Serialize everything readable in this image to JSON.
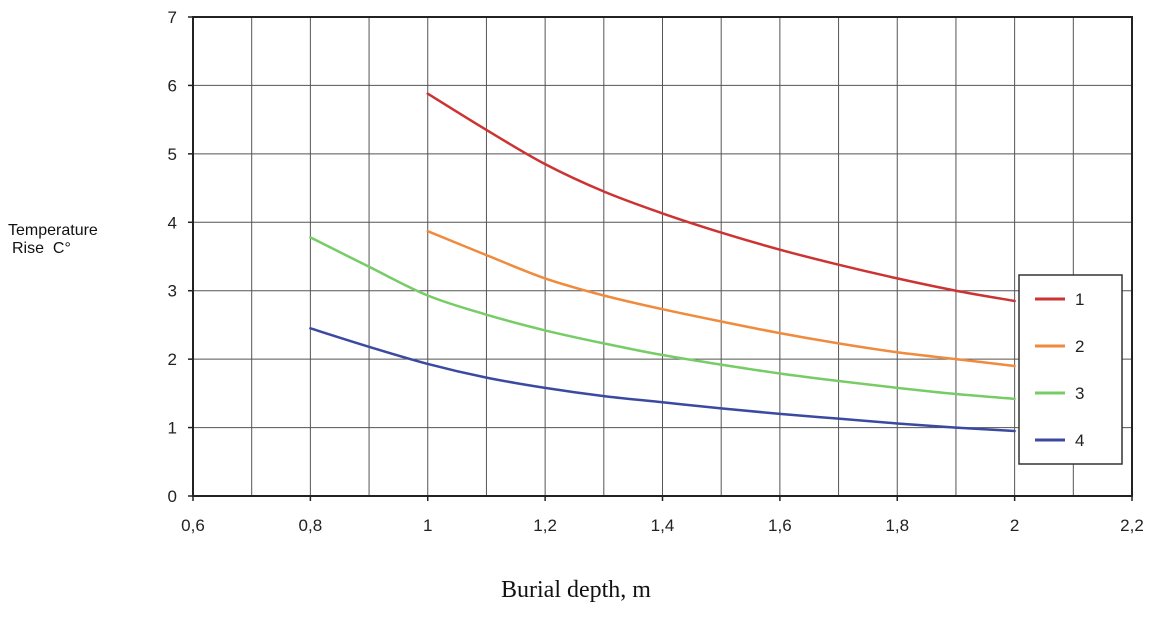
{
  "chart_data": {
    "type": "line",
    "xlabel": "Burial depth, m",
    "ylabel_line1": "Temperature",
    "ylabel_line2": "Rise  C°",
    "xlim": [
      0.6,
      2.2
    ],
    "ylim": [
      0,
      7
    ],
    "x_ticks": [
      0.6,
      0.8,
      1.0,
      1.2,
      1.4,
      1.6,
      1.8,
      2.0,
      2.2
    ],
    "x_tick_labels": [
      "0,6",
      "0,8",
      "1",
      "1,2",
      "1,4",
      "1,6",
      "1,8",
      "2",
      "2,2"
    ],
    "y_ticks": [
      0,
      1,
      2,
      3,
      4,
      5,
      6,
      7
    ],
    "y_tick_labels": [
      "0",
      "1",
      "2",
      "3",
      "4",
      "5",
      "6",
      "7"
    ],
    "grid": true,
    "grid_x_step": 0.1,
    "legend_position": "right",
    "series": [
      {
        "name": "1",
        "color": "#cc3333",
        "x": [
          1.0,
          1.1,
          1.2,
          1.3,
          1.4,
          1.5,
          1.6,
          1.7,
          1.8,
          1.9,
          2.0
        ],
        "y": [
          5.88,
          5.35,
          4.85,
          4.45,
          4.13,
          3.85,
          3.6,
          3.38,
          3.18,
          3.0,
          2.85
        ]
      },
      {
        "name": "2",
        "color": "#f08a3c",
        "x": [
          1.0,
          1.1,
          1.2,
          1.3,
          1.4,
          1.5,
          1.6,
          1.7,
          1.8,
          1.9,
          2.0
        ],
        "y": [
          3.87,
          3.52,
          3.18,
          2.93,
          2.73,
          2.55,
          2.38,
          2.23,
          2.1,
          2.0,
          1.9
        ]
      },
      {
        "name": "3",
        "color": "#77cc66",
        "x": [
          0.8,
          0.9,
          1.0,
          1.1,
          1.2,
          1.3,
          1.4,
          1.5,
          1.6,
          1.7,
          1.8,
          1.9,
          2.0
        ],
        "y": [
          3.78,
          3.35,
          2.93,
          2.65,
          2.42,
          2.23,
          2.06,
          1.92,
          1.79,
          1.68,
          1.58,
          1.49,
          1.42
        ]
      },
      {
        "name": "4",
        "color": "#3b4aa0",
        "x": [
          0.8,
          0.9,
          1.0,
          1.1,
          1.2,
          1.3,
          1.4,
          1.5,
          1.6,
          1.7,
          1.8,
          1.9,
          2.0
        ],
        "y": [
          2.45,
          2.18,
          1.93,
          1.73,
          1.58,
          1.46,
          1.37,
          1.28,
          1.2,
          1.13,
          1.06,
          1.0,
          0.95
        ]
      }
    ]
  }
}
